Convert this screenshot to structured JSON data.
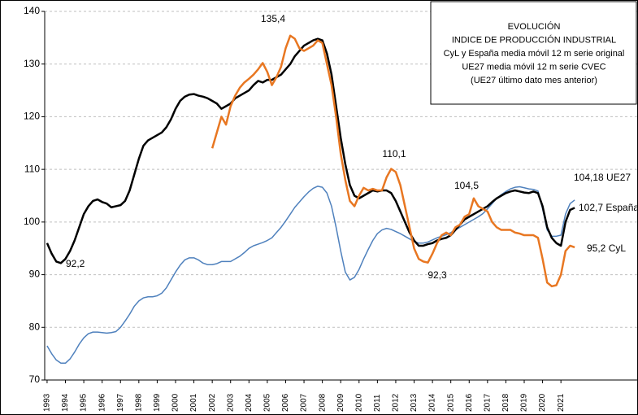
{
  "chart_data": {
    "type": "line",
    "title": [
      "EVOLUCIÓN",
      "INDICE DE PRODUCCIÓN INDUSTRIAL",
      "CyL y España media móvil 12 m serie original",
      "UE27 media móvil 12 m serie CVEC",
      "(UE27 último dato mes anterior)"
    ],
    "x": [
      1993,
      1993.25,
      1993.5,
      1993.75,
      1994,
      1994.25,
      1994.5,
      1994.75,
      1995,
      1995.25,
      1995.5,
      1995.75,
      1996,
      1996.25,
      1996.5,
      1996.75,
      1997,
      1997.25,
      1997.5,
      1997.75,
      1998,
      1998.25,
      1998.5,
      1998.75,
      1999,
      1999.25,
      1999.5,
      1999.75,
      2000,
      2000.25,
      2000.5,
      2000.75,
      2001,
      2001.25,
      2001.5,
      2001.75,
      2002,
      2002.25,
      2002.5,
      2002.75,
      2003,
      2003.25,
      2003.5,
      2003.75,
      2004,
      2004.25,
      2004.5,
      2004.75,
      2005,
      2005.25,
      2005.5,
      2005.75,
      2006,
      2006.25,
      2006.5,
      2006.75,
      2007,
      2007.25,
      2007.5,
      2007.75,
      2008,
      2008.25,
      2008.5,
      2008.75,
      2009,
      2009.25,
      2009.5,
      2009.75,
      2010,
      2010.25,
      2010.5,
      2010.75,
      2011,
      2011.25,
      2011.5,
      2011.75,
      2012,
      2012.25,
      2012.5,
      2012.75,
      2013,
      2013.25,
      2013.5,
      2013.75,
      2014,
      2014.25,
      2014.5,
      2014.75,
      2015,
      2015.25,
      2015.5,
      2015.75,
      2016,
      2016.25,
      2016.5,
      2016.75,
      2017,
      2017.25,
      2017.5,
      2017.75,
      2018,
      2018.25,
      2018.5,
      2018.75,
      2019,
      2019.25,
      2019.5,
      2019.75,
      2020,
      2020.25,
      2020.5,
      2020.75,
      2021,
      2021.25,
      2021.5,
      2021.75
    ],
    "series": [
      {
        "color": "#000000",
        "values": [
          96,
          94,
          92.5,
          92.2,
          93,
          94.5,
          96.5,
          99,
          101.5,
          103,
          104,
          104.3,
          103.8,
          103.5,
          102.8,
          103,
          103.2,
          104,
          106,
          109,
          112,
          114.5,
          115.5,
          116,
          116.5,
          117,
          118,
          119.5,
          121.5,
          123,
          123.8,
          124.2,
          124.3,
          124,
          123.8,
          123.5,
          123,
          122.5,
          121.5,
          122,
          122.5,
          123.5,
          124,
          124.5,
          125,
          126,
          126.8,
          126.5,
          127,
          127,
          127.5,
          128,
          129,
          130,
          131.5,
          132.5,
          133.5,
          134,
          134.5,
          134.8,
          134.5,
          132,
          128,
          122,
          116,
          111,
          107,
          105,
          104.5,
          105,
          105.5,
          106,
          105.8,
          106,
          106,
          105.5,
          104,
          102,
          100,
          98,
          96.5,
          95.5,
          95.5,
          95.8,
          96,
          96.5,
          96.8,
          97,
          97.5,
          98.5,
          99.5,
          100.5,
          101,
          101.5,
          102,
          102.5,
          103,
          103.8,
          104.5,
          105,
          105.5,
          105.8,
          106,
          105.8,
          105.6,
          105.5,
          105.8,
          105.5,
          103,
          99,
          97,
          96,
          95.5,
          100,
          102.3,
          102.7
        ]
      },
      {
        "color": "#4f81bd",
        "values": [
          76.5,
          75,
          73.8,
          73.2,
          73.2,
          74,
          75.3,
          76.8,
          78,
          78.8,
          79.1,
          79.1,
          79,
          78.9,
          79,
          79.2,
          80,
          81.2,
          82.5,
          84,
          85,
          85.6,
          85.8,
          85.8,
          86,
          86.5,
          87.5,
          89,
          90.5,
          91.8,
          92.8,
          93.2,
          93.2,
          92.8,
          92.2,
          91.9,
          91.9,
          92.1,
          92.5,
          92.5,
          92.5,
          93,
          93.5,
          94.2,
          95,
          95.5,
          95.8,
          96.1,
          96.5,
          97,
          98,
          99,
          100.2,
          101.5,
          102.8,
          103.8,
          104.8,
          105.7,
          106.4,
          106.8,
          106.6,
          105.5,
          103,
          99,
          94.5,
          90.5,
          89,
          89.5,
          91,
          93,
          94.8,
          96.5,
          97.8,
          98.5,
          98.8,
          98.6,
          98.2,
          97.8,
          97.3,
          96.8,
          96.3,
          96,
          96,
          96.2,
          96.6,
          97,
          97.3,
          97.6,
          98,
          98.5,
          99,
          99.5,
          100,
          100.5,
          101,
          101.6,
          102.5,
          103.5,
          104.5,
          105.2,
          105.8,
          106.3,
          106.6,
          106.7,
          106.5,
          106.3,
          106.2,
          105.9,
          102.5,
          98.5,
          97.3,
          97.3,
          97.5,
          101.5,
          103.5,
          104.18
        ]
      },
      {
        "color": "#e87722",
        "values": [
          null,
          null,
          null,
          null,
          null,
          null,
          null,
          null,
          null,
          null,
          null,
          null,
          null,
          null,
          null,
          null,
          null,
          null,
          null,
          null,
          null,
          null,
          null,
          null,
          null,
          null,
          null,
          null,
          null,
          null,
          null,
          null,
          null,
          null,
          null,
          null,
          114,
          117,
          120,
          118.5,
          122,
          124,
          125.5,
          126.5,
          127.2,
          128,
          129,
          130.2,
          128.5,
          126,
          127.5,
          129.5,
          133,
          135.4,
          134.8,
          133,
          132.5,
          133,
          133.5,
          134.5,
          134,
          130,
          126,
          120,
          113,
          108,
          104,
          103,
          105,
          106.5,
          106,
          106.3,
          106,
          106,
          108.5,
          110.1,
          109.5,
          107,
          103,
          99,
          95,
          93,
          92.5,
          92.3,
          94,
          96,
          97.5,
          98,
          97.5,
          99,
          99.5,
          101,
          101.5,
          104.5,
          103,
          102.5,
          102,
          100,
          99,
          98.5,
          98.5,
          98.5,
          98,
          97.8,
          97.5,
          97.5,
          97.5,
          97,
          93,
          88.5,
          87.8,
          88,
          90,
          94.5,
          95.5,
          95.2
        ]
      }
    ],
    "annotations": [
      "135,4",
      "110,1",
      "104,5",
      "92,3",
      "92,2",
      "104,18 UE27",
      "102,7 España",
      "95,2 CyL"
    ],
    "xlim": [
      1992.87,
      2025.2
    ],
    "xticks": [
      1993,
      1994,
      1995,
      1996,
      1997,
      1998,
      1999,
      2000,
      2001,
      2002,
      2003,
      2004,
      2005,
      2006,
      2007,
      2008,
      2009,
      2010,
      2011,
      2012,
      2013,
      2014,
      2015,
      2016,
      2017,
      2018,
      2019,
      2020,
      2021
    ],
    "ylim": [
      70,
      140
    ],
    "yticks": [
      70,
      80,
      90,
      100,
      110,
      120,
      130,
      140
    ],
    "grid": true
  }
}
